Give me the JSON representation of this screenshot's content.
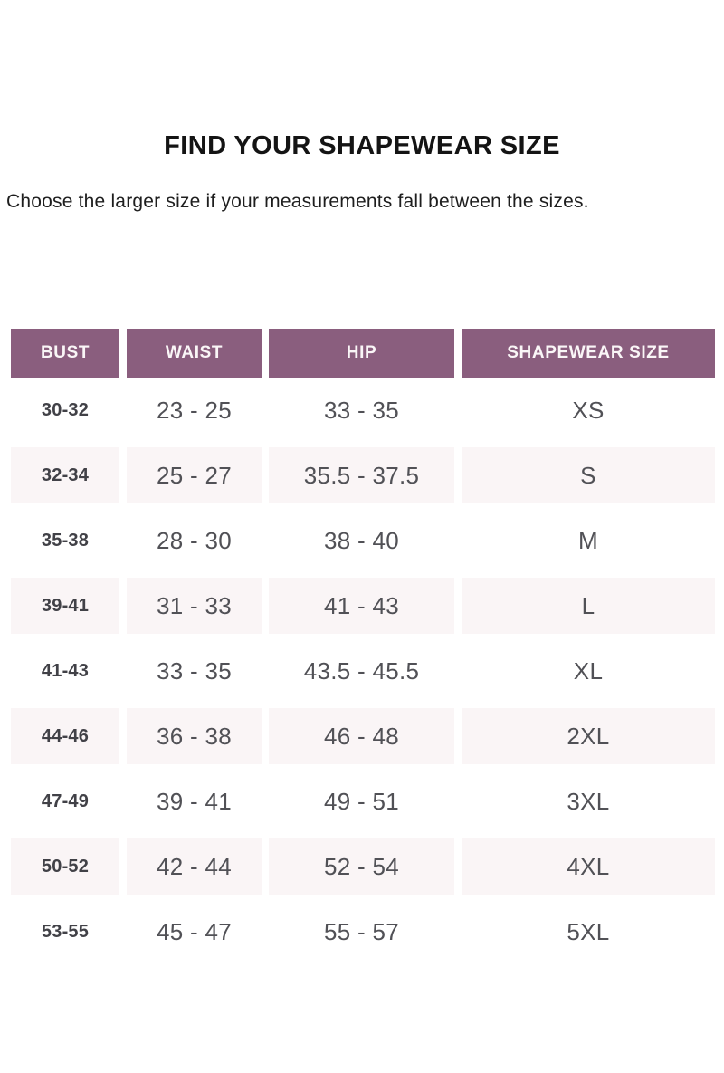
{
  "page": {
    "title": "FIND YOUR SHAPEWEAR SIZE",
    "subtitle": "Choose the larger size if your measurements fall between the sizes."
  },
  "table": {
    "headers": [
      "BUST",
      "WAIST",
      "HIP",
      "SHAPEWEAR SIZE"
    ],
    "rows": [
      {
        "bust": "30-32",
        "waist": "23 - 25",
        "hip": "33 - 35",
        "size": "XS"
      },
      {
        "bust": "32-34",
        "waist": "25 - 27",
        "hip": "35.5 - 37.5",
        "size": "S"
      },
      {
        "bust": "35-38",
        "waist": "28 - 30",
        "hip": "38 - 40",
        "size": "M"
      },
      {
        "bust": "39-41",
        "waist": "31 - 33",
        "hip": "41 - 43",
        "size": "L"
      },
      {
        "bust": "41-43",
        "waist": "33 - 35",
        "hip": "43.5 - 45.5",
        "size": "XL"
      },
      {
        "bust": "44-46",
        "waist": "36 - 38",
        "hip": "46 - 48",
        "size": "2XL"
      },
      {
        "bust": "47-49",
        "waist": "39 - 41",
        "hip": "49 - 51",
        "size": "3XL"
      },
      {
        "bust": "50-52",
        "waist": "42 - 44",
        "hip": "52 - 54",
        "size": "4XL"
      },
      {
        "bust": "53-55",
        "waist": "45 - 47",
        "hip": "55 - 57",
        "size": "5XL"
      }
    ]
  },
  "colors": {
    "header_bg": "#8a5e7e",
    "header_fg": "#faf6f7",
    "stripe_bg": "#faf5f6",
    "title_fg": "#141414",
    "subtitle_fg": "#1e1e1e",
    "cell_fg": "#515156",
    "bust_fg": "#414147"
  }
}
